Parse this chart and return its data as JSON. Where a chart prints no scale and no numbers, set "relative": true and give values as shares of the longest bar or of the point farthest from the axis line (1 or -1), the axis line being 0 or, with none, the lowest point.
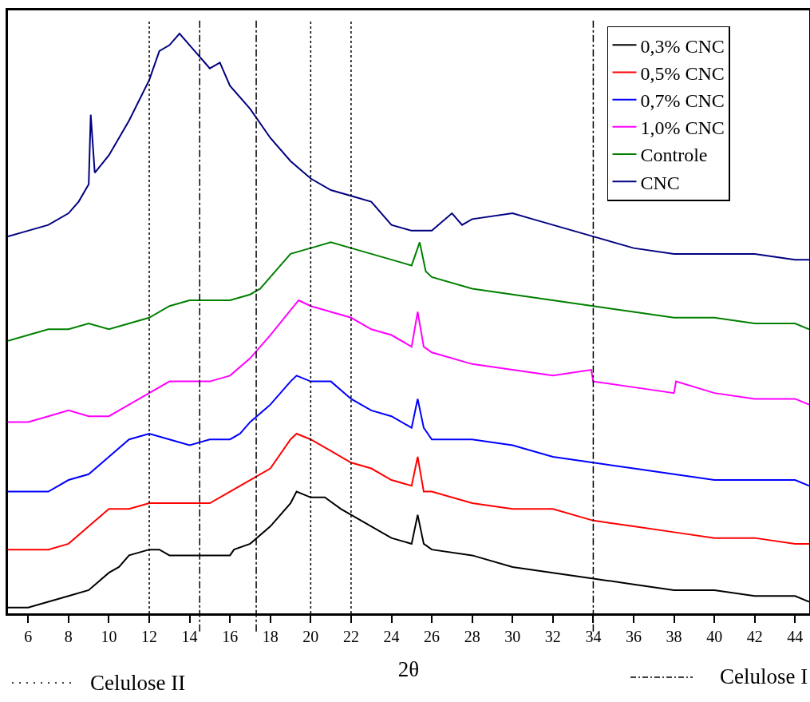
{
  "chart_data": {
    "type": "line",
    "relative": true,
    "xlabel": "2θ",
    "xlim": [
      5,
      44.7
    ],
    "xticks": [
      6,
      8,
      10,
      12,
      14,
      16,
      18,
      20,
      22,
      24,
      26,
      28,
      30,
      32,
      34,
      36,
      38,
      40,
      42,
      44
    ],
    "grid": false,
    "legend": "top right",
    "marker": "none",
    "line_style": "solid",
    "tick_labels": "x",
    "series": [
      {
        "name": "0,3% CNC",
        "color": "#000000",
        "x": [
          5,
          6,
          7,
          8,
          9,
          10,
          10.5,
          11,
          12,
          12.5,
          13,
          14,
          15,
          16,
          16.2,
          17,
          18,
          19,
          19.3,
          20,
          20.7,
          21.5,
          22,
          23,
          24,
          25,
          25.3,
          25.6,
          26,
          28,
          30,
          32,
          34,
          36,
          38,
          40,
          42,
          44,
          44.7
        ],
        "values": [
          0.01,
          0.01,
          0.02,
          0.03,
          0.04,
          0.07,
          0.08,
          0.1,
          0.11,
          0.11,
          0.1,
          0.1,
          0.1,
          0.1,
          0.11,
          0.12,
          0.15,
          0.19,
          0.21,
          0.2,
          0.2,
          0.18,
          0.17,
          0.15,
          0.13,
          0.12,
          0.17,
          0.12,
          0.11,
          0.1,
          0.08,
          0.07,
          0.06,
          0.05,
          0.04,
          0.04,
          0.03,
          0.03,
          0.02
        ]
      },
      {
        "name": "0,5% CNC",
        "color": "#ff0000",
        "x": [
          5,
          6,
          7,
          8,
          9,
          10,
          11,
          12,
          13,
          14,
          15,
          16,
          17,
          18,
          19,
          19.3,
          20,
          21,
          22,
          23,
          24,
          25,
          25.3,
          25.6,
          26,
          28,
          30,
          32,
          34,
          36,
          38,
          40,
          42,
          44,
          44.7
        ],
        "values": [
          0.11,
          0.11,
          0.11,
          0.12,
          0.15,
          0.18,
          0.18,
          0.19,
          0.19,
          0.19,
          0.19,
          0.21,
          0.23,
          0.25,
          0.3,
          0.31,
          0.3,
          0.28,
          0.26,
          0.25,
          0.23,
          0.22,
          0.27,
          0.21,
          0.21,
          0.19,
          0.18,
          0.18,
          0.16,
          0.15,
          0.14,
          0.13,
          0.13,
          0.12,
          0.12
        ]
      },
      {
        "name": "0,7% CNC",
        "color": "#0000ff",
        "x": [
          5,
          6,
          7,
          8,
          9,
          10,
          11,
          12,
          13,
          14,
          15,
          16,
          16.5,
          17,
          18,
          19,
          19.3,
          20,
          21,
          22,
          23,
          24,
          25,
          25.3,
          25.6,
          26,
          28,
          30,
          32,
          34,
          36,
          38,
          40,
          42,
          44,
          44.7
        ],
        "values": [
          0.21,
          0.21,
          0.21,
          0.23,
          0.24,
          0.27,
          0.3,
          0.31,
          0.3,
          0.29,
          0.3,
          0.3,
          0.31,
          0.33,
          0.36,
          0.4,
          0.41,
          0.4,
          0.4,
          0.37,
          0.35,
          0.34,
          0.32,
          0.37,
          0.32,
          0.3,
          0.3,
          0.29,
          0.27,
          0.26,
          0.25,
          0.24,
          0.23,
          0.23,
          0.23,
          0.22
        ]
      },
      {
        "name": "1,0% CNC",
        "color": "#ff00ff",
        "x": [
          5,
          6,
          7,
          8,
          9,
          10,
          11,
          12,
          13,
          14,
          15,
          16,
          17,
          18,
          19.4,
          20,
          21,
          22,
          23,
          24,
          25,
          25.3,
          25.6,
          26,
          28,
          30,
          32,
          33.9,
          34,
          36,
          38,
          38.1,
          40,
          42,
          44,
          44.7
        ],
        "values": [
          0.33,
          0.33,
          0.34,
          0.35,
          0.34,
          0.34,
          0.36,
          0.38,
          0.4,
          0.4,
          0.4,
          0.41,
          0.44,
          0.48,
          0.54,
          0.53,
          0.52,
          0.51,
          0.49,
          0.48,
          0.46,
          0.52,
          0.46,
          0.45,
          0.43,
          0.42,
          0.41,
          0.42,
          0.4,
          0.39,
          0.38,
          0.4,
          0.38,
          0.37,
          0.37,
          0.36
        ]
      },
      {
        "name": "Controle",
        "color": "#008000",
        "x": [
          5,
          6,
          7,
          8,
          9,
          10,
          11,
          12,
          13,
          14,
          15,
          16,
          17,
          17.5,
          18,
          19,
          20,
          21,
          22,
          23,
          24,
          25,
          25.4,
          25.7,
          26,
          28,
          30,
          32,
          34,
          36,
          38,
          40,
          42,
          44,
          44.7
        ],
        "values": [
          0.47,
          0.48,
          0.49,
          0.49,
          0.5,
          0.49,
          0.5,
          0.51,
          0.53,
          0.54,
          0.54,
          0.54,
          0.55,
          0.56,
          0.58,
          0.62,
          0.63,
          0.64,
          0.63,
          0.62,
          0.61,
          0.6,
          0.64,
          0.59,
          0.58,
          0.56,
          0.55,
          0.54,
          0.53,
          0.52,
          0.51,
          0.51,
          0.5,
          0.5,
          0.49
        ]
      },
      {
        "name": "CNC",
        "color": "#000080",
        "x": [
          5,
          6,
          7,
          8,
          8.5,
          9,
          9.1,
          9.3,
          10,
          11,
          12,
          12.5,
          13,
          13.5,
          14,
          14.5,
          15,
          15.5,
          16,
          17,
          18,
          19,
          20,
          21,
          22,
          23,
          24,
          25,
          26,
          27,
          27.5,
          28,
          30,
          31,
          32,
          34,
          36,
          38,
          40,
          42,
          44,
          44.7
        ],
        "values": [
          0.65,
          0.66,
          0.67,
          0.69,
          0.71,
          0.74,
          0.86,
          0.76,
          0.79,
          0.85,
          0.92,
          0.97,
          0.98,
          1,
          0.98,
          0.96,
          0.94,
          0.95,
          0.91,
          0.87,
          0.82,
          0.78,
          0.75,
          0.73,
          0.72,
          0.71,
          0.67,
          0.66,
          0.66,
          0.69,
          0.67,
          0.68,
          0.69,
          0.68,
          0.67,
          0.65,
          0.63,
          0.62,
          0.62,
          0.62,
          0.61,
          0.61
        ]
      }
    ],
    "annotations": [
      "Celulose II",
      "Celulose I"
    ],
    "ref_lines": [
      {
        "axis": "x",
        "value": 12,
        "line_style": "dotted",
        "color": "#000000"
      },
      {
        "axis": "x",
        "value": 20,
        "line_style": "dotted",
        "color": "#000000"
      },
      {
        "axis": "x",
        "value": 22,
        "line_style": "dotted",
        "color": "#000000"
      },
      {
        "axis": "x",
        "value": 14.5,
        "line_style": "dashed",
        "color": "#000000"
      },
      {
        "axis": "x",
        "value": 17.3,
        "line_style": "dashed",
        "color": "#000000"
      },
      {
        "axis": "x",
        "value": 34,
        "line_style": "dashed",
        "color": "#000000"
      }
    ]
  }
}
